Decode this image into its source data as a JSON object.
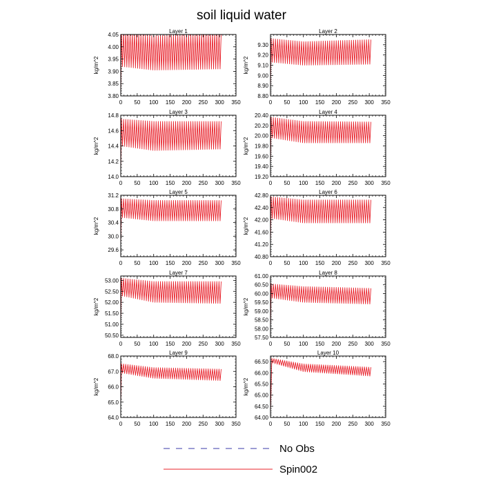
{
  "figure": {
    "title": "soil liquid water",
    "legend": [
      {
        "label": "No Obs",
        "color": "#3a3aa8",
        "dash": "dashed"
      },
      {
        "label": "Spin002",
        "color": "#e8202a",
        "dash": "solid"
      }
    ]
  },
  "chart_data": [
    {
      "type": "line",
      "title": "Layer 1",
      "ylabel": "kg/m^2",
      "xlim": [
        0,
        350
      ],
      "ylim": [
        3.8,
        4.05
      ],
      "xticks": [
        0,
        50,
        100,
        150,
        200,
        250,
        300,
        350
      ],
      "yticks": [
        3.8,
        3.85,
        3.9,
        3.95,
        4.0,
        4.05
      ],
      "ydecimals": 2,
      "series": [
        {
          "name": "Spin002",
          "x_range": [
            0,
            305
          ],
          "cycles": 46,
          "start": 3.8,
          "rise_end": 2,
          "max_profile": [
            [
              2,
              4.06
            ],
            [
              100,
              4.045
            ],
            [
              305,
              4.055
            ]
          ],
          "min_profile": [
            [
              2,
              3.92
            ],
            [
              100,
              3.905
            ],
            [
              305,
              3.91
            ]
          ]
        }
      ]
    },
    {
      "type": "line",
      "title": "Layer 2",
      "ylabel": "kg/m^2",
      "xlim": [
        0,
        350
      ],
      "ylim": [
        8.8,
        9.4
      ],
      "xticks": [
        0,
        50,
        100,
        150,
        200,
        250,
        300,
        350
      ],
      "yticks": [
        8.8,
        8.9,
        9.0,
        9.1,
        9.2,
        9.3
      ],
      "ydecimals": 2,
      "series": [
        {
          "name": "Spin002",
          "x_range": [
            0,
            305
          ],
          "cycles": 46,
          "start": 8.85,
          "rise_end": 2,
          "max_profile": [
            [
              2,
              9.36
            ],
            [
              100,
              9.33
            ],
            [
              305,
              9.35
            ]
          ],
          "min_profile": [
            [
              2,
              9.13
            ],
            [
              100,
              9.1
            ],
            [
              305,
              9.11
            ]
          ]
        }
      ]
    },
    {
      "type": "line",
      "title": "Layer 3",
      "ylabel": "kg/m^2",
      "xlim": [
        0,
        350
      ],
      "ylim": [
        14.0,
        14.8
      ],
      "xticks": [
        0,
        50,
        100,
        150,
        200,
        250,
        300,
        350
      ],
      "yticks": [
        14.0,
        14.2,
        14.4,
        14.6,
        14.8
      ],
      "ydecimals": 1,
      "series": [
        {
          "name": "Spin002",
          "x_range": [
            0,
            305
          ],
          "cycles": 46,
          "start": 14.05,
          "rise_end": 2,
          "max_profile": [
            [
              2,
              14.75
            ],
            [
              100,
              14.72
            ],
            [
              305,
              14.72
            ]
          ],
          "min_profile": [
            [
              2,
              14.4
            ],
            [
              100,
              14.34
            ],
            [
              305,
              14.36
            ]
          ]
        }
      ]
    },
    {
      "type": "line",
      "title": "Layer 4",
      "ylabel": "kg/m^2",
      "xlim": [
        0,
        350
      ],
      "ylim": [
        19.2,
        20.4
      ],
      "xticks": [
        0,
        50,
        100,
        150,
        200,
        250,
        300,
        350
      ],
      "yticks": [
        19.2,
        19.4,
        19.6,
        19.8,
        20.0,
        20.2,
        20.4
      ],
      "ydecimals": 2,
      "series": [
        {
          "name": "Spin002",
          "x_range": [
            0,
            305
          ],
          "cycles": 46,
          "start": 19.4,
          "rise_end": 2,
          "max_profile": [
            [
              2,
              20.36
            ],
            [
              100,
              20.28
            ],
            [
              305,
              20.27
            ]
          ],
          "min_profile": [
            [
              2,
              19.96
            ],
            [
              100,
              19.86
            ],
            [
              305,
              19.86
            ]
          ]
        }
      ]
    },
    {
      "type": "line",
      "title": "Layer 5",
      "ylabel": "kg/m^2",
      "xlim": [
        0,
        350
      ],
      "ylim": [
        29.4,
        31.2
      ],
      "xticks": [
        0,
        50,
        100,
        150,
        200,
        250,
        300,
        350
      ],
      "yticks": [
        29.6,
        30.0,
        30.4,
        30.8,
        31.2
      ],
      "ydecimals": 1,
      "series": [
        {
          "name": "Spin002",
          "x_range": [
            0,
            305
          ],
          "cycles": 46,
          "start": 29.7,
          "rise_end": 2,
          "max_profile": [
            [
              2,
              31.1
            ],
            [
              100,
              31.05
            ],
            [
              305,
              31.05
            ]
          ],
          "min_profile": [
            [
              2,
              30.55
            ],
            [
              100,
              30.45
            ],
            [
              305,
              30.45
            ]
          ]
        }
      ]
    },
    {
      "type": "line",
      "title": "Layer 6",
      "ylabel": "kg/m^2",
      "xlim": [
        0,
        350
      ],
      "ylim": [
        40.8,
        42.8
      ],
      "xticks": [
        0,
        50,
        100,
        150,
        200,
        250,
        300,
        350
      ],
      "yticks": [
        40.8,
        41.2,
        41.6,
        42.0,
        42.4,
        42.8
      ],
      "ydecimals": 2,
      "series": [
        {
          "name": "Spin002",
          "x_range": [
            0,
            305
          ],
          "cycles": 46,
          "start": 41.2,
          "rise_end": 2,
          "max_profile": [
            [
              2,
              42.75
            ],
            [
              100,
              42.65
            ],
            [
              305,
              42.65
            ]
          ],
          "min_profile": [
            [
              2,
              42.05
            ],
            [
              100,
              41.9
            ],
            [
              305,
              41.9
            ]
          ]
        }
      ]
    },
    {
      "type": "line",
      "title": "Layer 7",
      "ylabel": "kg/m^2",
      "xlim": [
        0,
        350
      ],
      "ylim": [
        50.4,
        53.2
      ],
      "xticks": [
        0,
        50,
        100,
        150,
        200,
        250,
        300,
        350
      ],
      "yticks": [
        50.5,
        51.0,
        51.5,
        52.0,
        52.5,
        53.0
      ],
      "ydecimals": 2,
      "series": [
        {
          "name": "Spin002",
          "x_range": [
            0,
            305
          ],
          "cycles": 46,
          "start": 51.0,
          "rise_end": 2,
          "max_profile": [
            [
              2,
              53.1
            ],
            [
              100,
              52.95
            ],
            [
              305,
              52.95
            ]
          ],
          "min_profile": [
            [
              2,
              52.3
            ],
            [
              100,
              52.0
            ],
            [
              305,
              51.95
            ]
          ]
        }
      ]
    },
    {
      "type": "line",
      "title": "Layer 8",
      "ylabel": "kg/m^2",
      "xlim": [
        0,
        350
      ],
      "ylim": [
        57.5,
        61.0
      ],
      "xticks": [
        0,
        50,
        100,
        150,
        200,
        250,
        300,
        350
      ],
      "yticks": [
        57.5,
        58.0,
        58.5,
        59.0,
        59.5,
        60.0,
        60.5,
        61.0
      ],
      "ydecimals": 2,
      "series": [
        {
          "name": "Spin002",
          "x_range": [
            0,
            305
          ],
          "cycles": 46,
          "start": 58.0,
          "rise_end": 2,
          "max_profile": [
            [
              2,
              60.55
            ],
            [
              100,
              60.4
            ],
            [
              305,
              60.3
            ]
          ],
          "min_profile": [
            [
              2,
              59.75
            ],
            [
              100,
              59.5
            ],
            [
              305,
              59.4
            ]
          ]
        }
      ]
    },
    {
      "type": "line",
      "title": "Layer 9",
      "ylabel": "kg/m^2",
      "xlim": [
        0,
        350
      ],
      "ylim": [
        64.0,
        68.0
      ],
      "xticks": [
        0,
        50,
        100,
        150,
        200,
        250,
        300,
        350
      ],
      "yticks": [
        64.0,
        65.0,
        66.0,
        67.0,
        68.0
      ],
      "ydecimals": 1,
      "series": [
        {
          "name": "Spin002",
          "x_range": [
            0,
            305
          ],
          "cycles": 46,
          "start": 64.8,
          "rise_end": 2,
          "max_profile": [
            [
              2,
              67.5
            ],
            [
              100,
              67.25
            ],
            [
              305,
              67.15
            ]
          ],
          "min_profile": [
            [
              2,
              66.9
            ],
            [
              100,
              66.55
            ],
            [
              305,
              66.4
            ]
          ]
        }
      ]
    },
    {
      "type": "line",
      "title": "Layer 10",
      "ylabel": "kg/m^2",
      "xlim": [
        0,
        350
      ],
      "ylim": [
        64.0,
        66.75
      ],
      "xticks": [
        0,
        50,
        100,
        150,
        200,
        250,
        300,
        350
      ],
      "yticks": [
        64.0,
        64.5,
        65.0,
        65.5,
        66.0,
        66.5
      ],
      "ydecimals": 2,
      "series": [
        {
          "name": "Spin002",
          "x_range": [
            0,
            305
          ],
          "cycles": 46,
          "start": 64.2,
          "rise_end": 4,
          "max_profile": [
            [
              4,
              66.65
            ],
            [
              100,
              66.4
            ],
            [
              305,
              66.25
            ]
          ],
          "min_profile": [
            [
              4,
              66.45
            ],
            [
              100,
              66.05
            ],
            [
              305,
              65.85
            ]
          ]
        }
      ]
    }
  ]
}
